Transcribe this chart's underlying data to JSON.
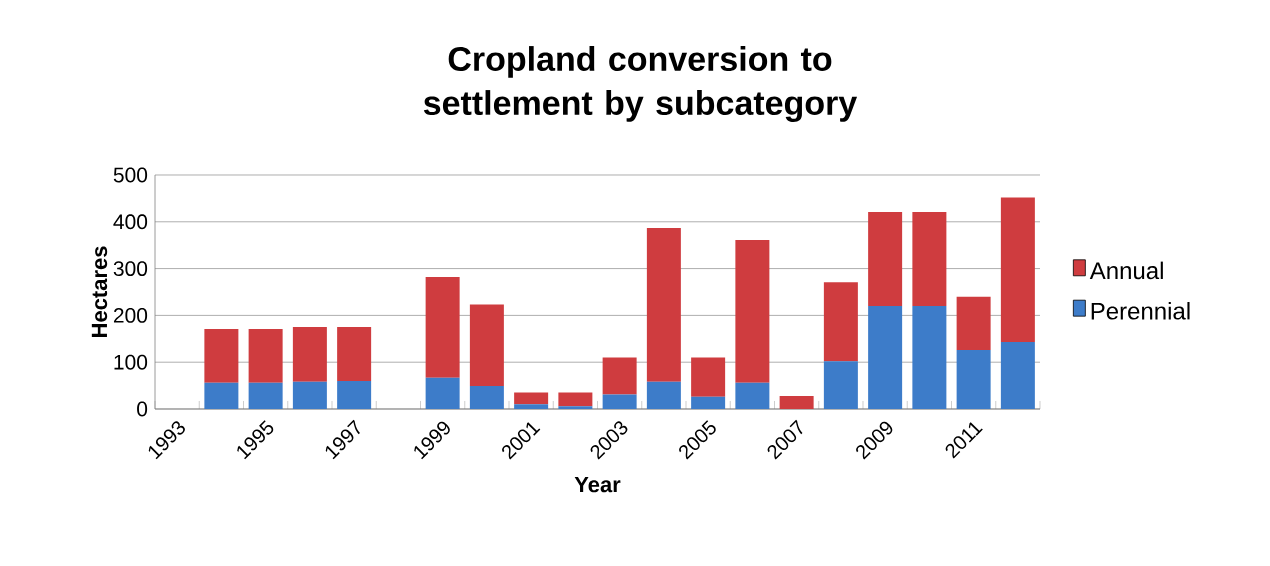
{
  "chart_data": {
    "type": "bar",
    "stacked": true,
    "title": "Cropland conversion to settlement by subcategory",
    "xlabel": "Year",
    "ylabel": "Hectares",
    "categories": [
      "1993",
      null,
      "1995",
      null,
      "1997",
      null,
      "1999",
      null,
      "2001",
      null,
      "2003",
      null,
      "2005",
      null,
      "2007",
      null,
      "2009",
      null,
      "2011",
      null
    ],
    "series": [
      {
        "name": "Perennial",
        "color": "#3d7cc9",
        "values": [
          null,
          56,
          56,
          58,
          60,
          null,
          67,
          49,
          10,
          6,
          31,
          58,
          26,
          56,
          0,
          102,
          220,
          220,
          126,
          143
        ]
      },
      {
        "name": "Annual",
        "color": "#cf3c3f",
        "values": [
          null,
          115,
          115,
          117,
          115,
          null,
          215,
          174,
          25,
          29,
          79,
          329,
          84,
          305,
          28,
          169,
          201,
          201,
          114,
          309
        ]
      }
    ],
    "ylim": [
      0,
      500
    ],
    "yticks": [
      0,
      100,
      200,
      300,
      400,
      500
    ],
    "grid": "y",
    "legend": "right"
  }
}
